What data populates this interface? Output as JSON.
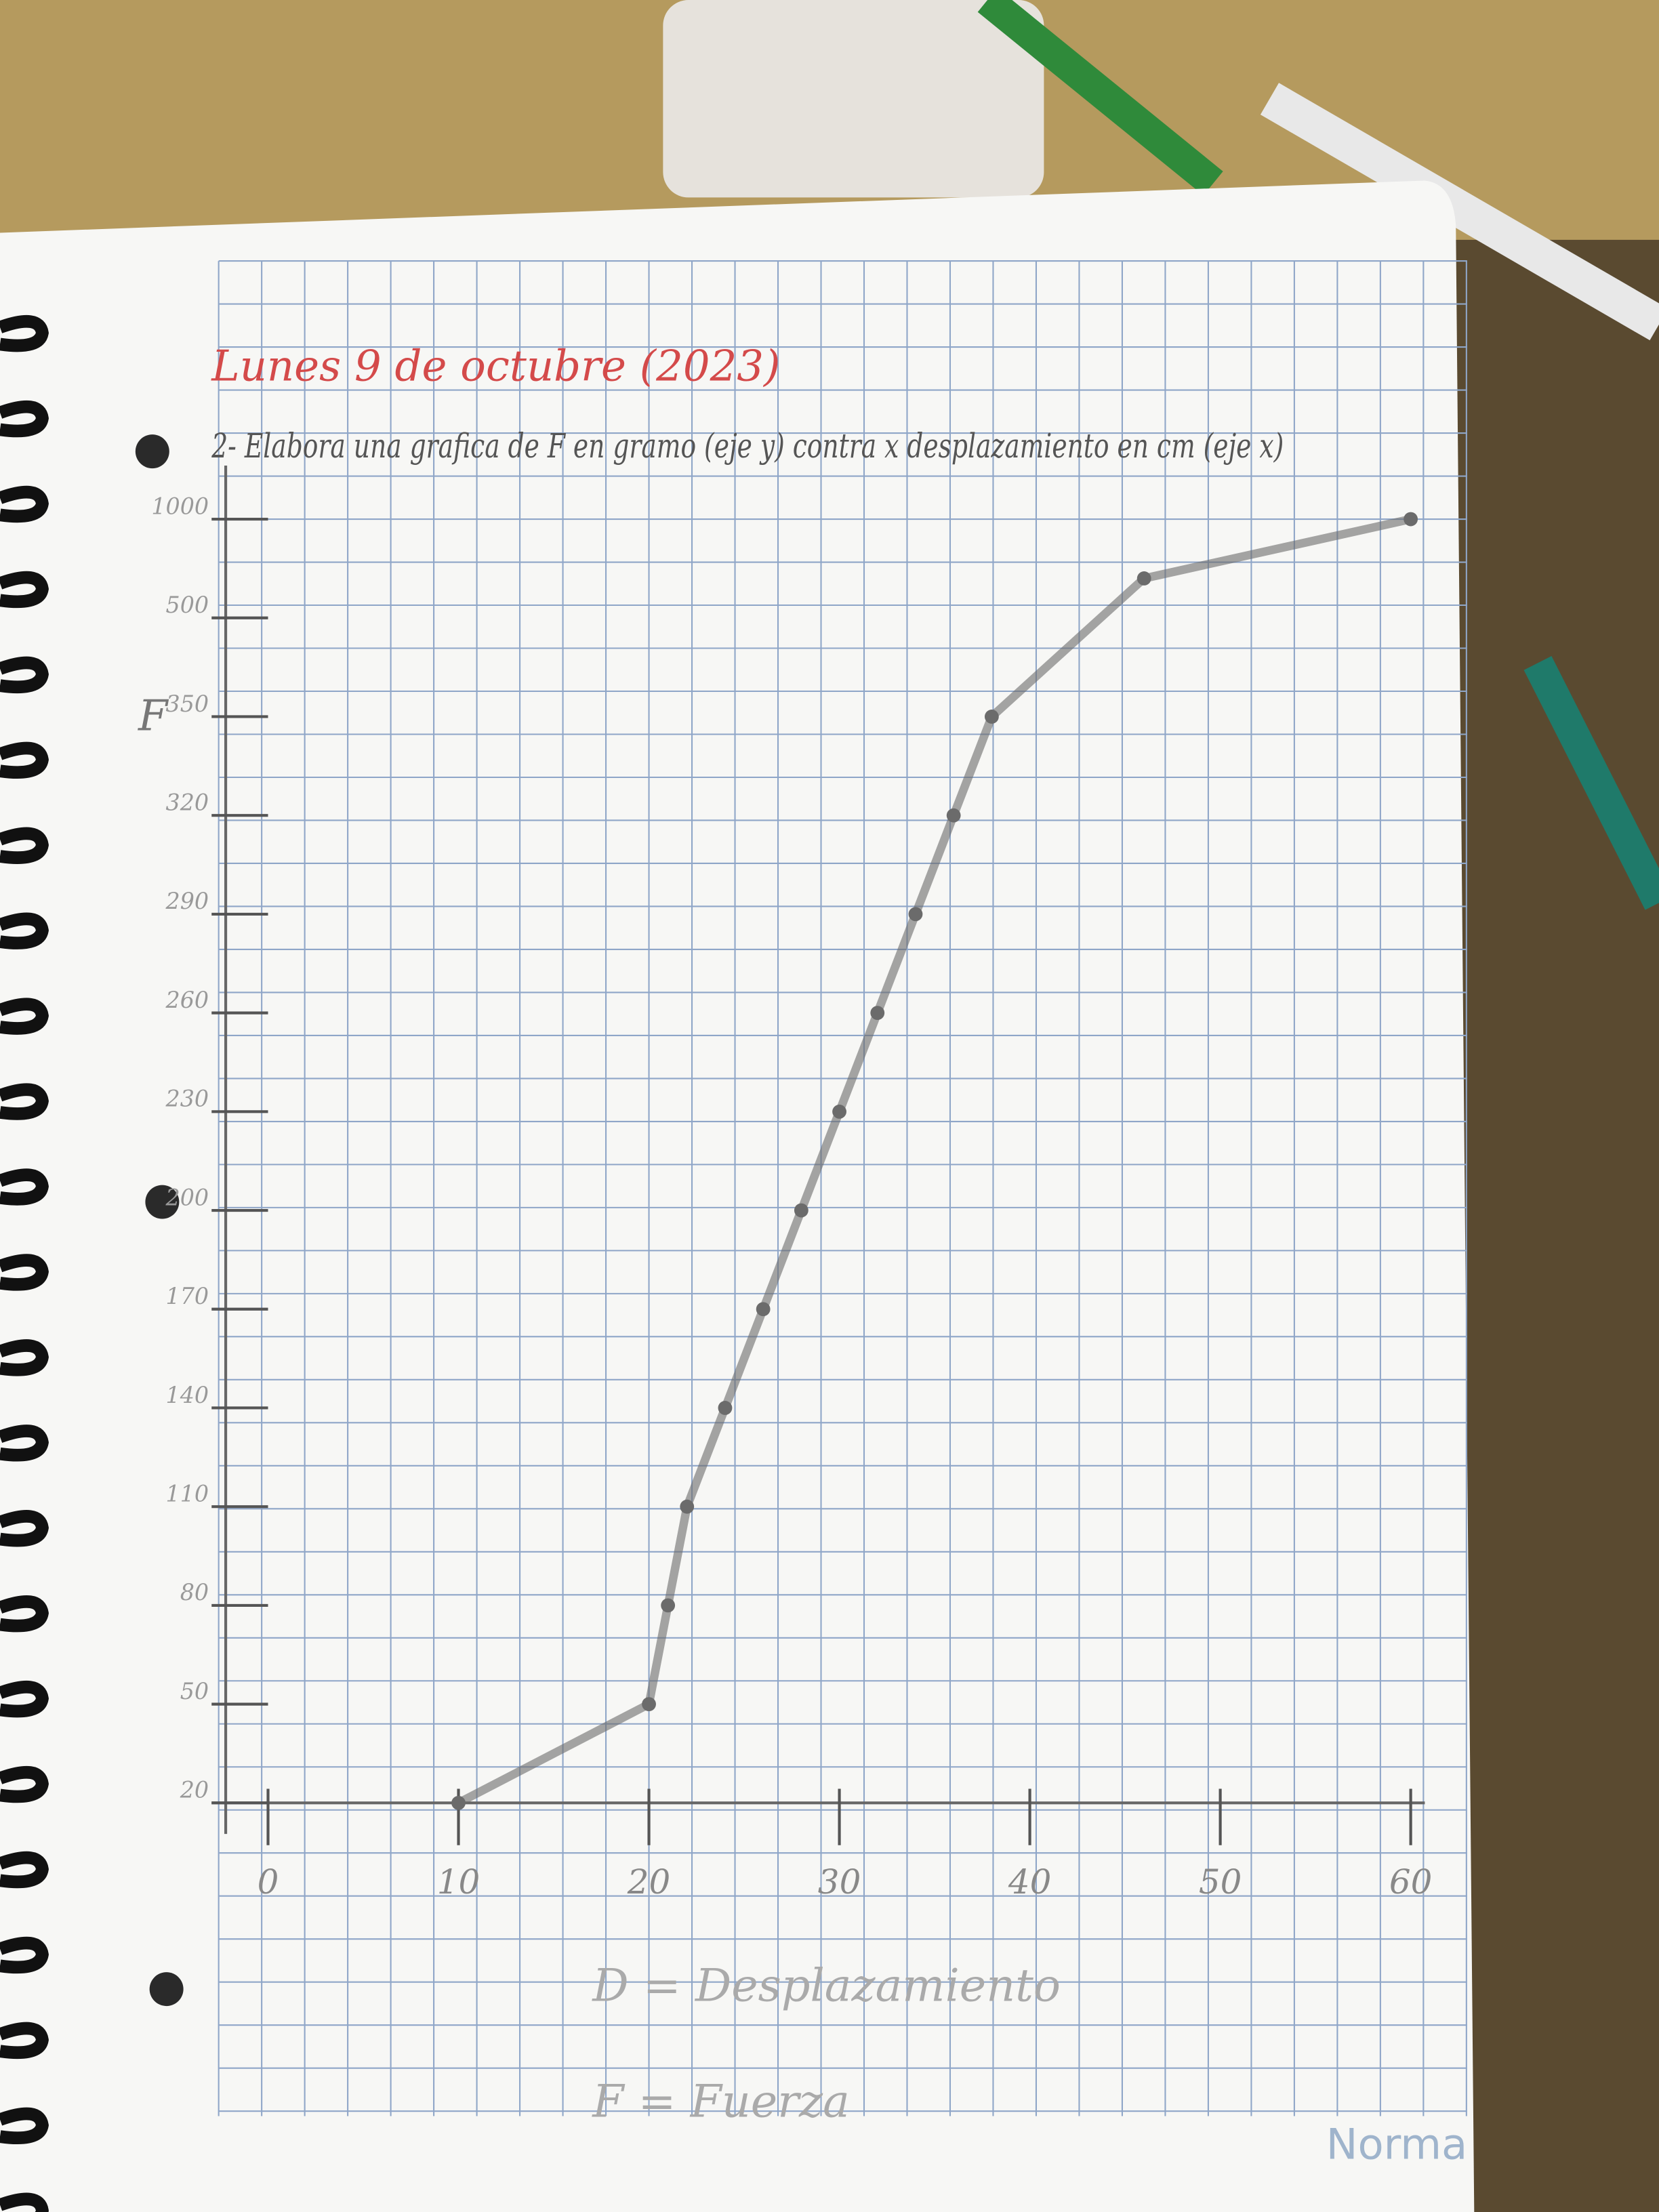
{
  "chart_data": {
    "type": "line",
    "title": "Lunes 9 de octubre (2023)",
    "subtitle": "2- Elabora una grafica de F en gramo (eje y) contra x desplazamiento en cm (eje x)",
    "y_axis_label": "F",
    "annotations": [
      "D = Desplazamiento",
      "F = Fuerza"
    ],
    "brand": "Norma",
    "x": [
      10,
      20,
      21,
      22,
      24,
      26,
      28,
      30,
      32,
      34,
      36,
      38,
      46,
      60
    ],
    "series": [
      {
        "name": "F",
        "color": "#6b6b6b",
        "values": [
          20,
          50,
          80,
          110,
          140,
          170,
          200,
          230,
          260,
          290,
          320,
          350,
          700,
          1000
        ]
      }
    ],
    "xlim": [
      0,
      60
    ],
    "xticks": [
      0,
      10,
      20,
      30,
      40,
      50,
      60
    ],
    "ylim": [
      20,
      1000
    ],
    "yticks": [
      20,
      50,
      80,
      110,
      140,
      170,
      200,
      230,
      260,
      290,
      320,
      350,
      500,
      1000
    ],
    "grid": true
  }
}
